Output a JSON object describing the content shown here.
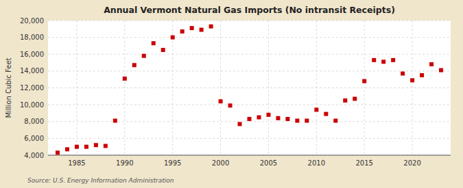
{
  "chart_data": {
    "type": "scatter",
    "title": "Annual Vermont Natural Gas Imports (No intransit Receipts)",
    "y_label": "Million Cubic Feet",
    "annotations": [
      "Source: U.S. Energy Information Administration"
    ],
    "x": [
      1983,
      1984,
      1985,
      1986,
      1987,
      1988,
      1989,
      1990,
      1991,
      1992,
      1993,
      1994,
      1995,
      1996,
      1997,
      1998,
      1999,
      2000,
      2001,
      2002,
      2003,
      2004,
      2005,
      2006,
      2007,
      2008,
      2009,
      2010,
      2011,
      2012,
      2013,
      2014,
      2015,
      2016,
      2017,
      2018,
      2019,
      2020,
      2021,
      2022,
      2023
    ],
    "values": [
      4300,
      4700,
      5000,
      5000,
      5200,
      5100,
      8100,
      13100,
      14700,
      15800,
      17300,
      16500,
      18000,
      18700,
      19100,
      18900,
      19300,
      10400,
      9900,
      7700,
      8300,
      8500,
      8800,
      8400,
      8300,
      8100,
      8100,
      9400,
      8900,
      8100,
      10500,
      10700,
      12800,
      15300,
      15100,
      15300,
      13700,
      12900,
      13500,
      14800,
      14100
    ],
    "color": "#cc0000",
    "marker": "square",
    "xlim": [
      1982,
      2024
    ],
    "xticks": [
      1985,
      1990,
      1995,
      2000,
      2005,
      2010,
      2015,
      2020
    ],
    "ylim": [
      4000,
      20000
    ],
    "yticks": [
      {
        "value": 4000,
        "label": "4,000"
      },
      {
        "value": 6000,
        "label": "6,000"
      },
      {
        "value": 8000,
        "label": "8,000"
      },
      {
        "value": 10000,
        "label": "10,000"
      },
      {
        "value": 12000,
        "label": "12,000"
      },
      {
        "value": 14000,
        "label": "14,000"
      },
      {
        "value": 16000,
        "label": "16,000"
      },
      {
        "value": 18000,
        "label": "18,000"
      },
      {
        "value": 20000,
        "label": "20,000"
      }
    ],
    "grid": true
  }
}
